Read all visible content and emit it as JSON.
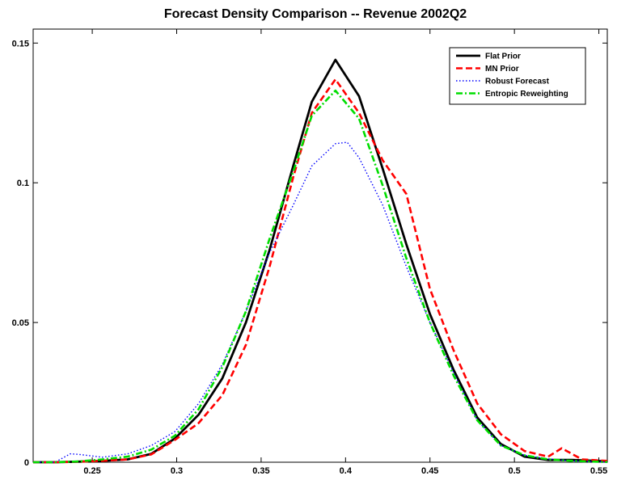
{
  "chart_data": {
    "type": "line",
    "title": "Forecast Density Comparison -- Revenue 2002Q2",
    "xlabel": "",
    "ylabel": "",
    "xlim": [
      0.215,
      0.555
    ],
    "ylim": [
      0,
      0.155
    ],
    "xticks": [
      0.25,
      0.3,
      0.35,
      0.4,
      0.45,
      0.5,
      0.55
    ],
    "xtick_labels": [
      "0.25",
      "0.3",
      "0.35",
      "0.4",
      "0.45",
      "0.5",
      "0.55"
    ],
    "yticks": [
      0,
      0.05,
      0.1,
      0.15
    ],
    "ytick_labels": [
      "0",
      "0.05",
      "0.1",
      "0.15"
    ],
    "grid": false,
    "legend_position": "top-right",
    "series": [
      {
        "name": "Flat Prior",
        "color": "#000000",
        "style": "solid",
        "x": [
          0.215,
          0.228,
          0.242,
          0.256,
          0.271,
          0.285,
          0.299,
          0.313,
          0.327,
          0.341,
          0.355,
          0.369,
          0.38,
          0.394,
          0.408,
          0.422,
          0.436,
          0.45,
          0.464,
          0.478,
          0.492,
          0.506,
          0.52,
          0.534,
          0.548,
          0.555
        ],
        "y": [
          0.0,
          0.0,
          0.0002,
          0.0005,
          0.001,
          0.003,
          0.0085,
          0.017,
          0.03,
          0.05,
          0.076,
          0.106,
          0.129,
          0.144,
          0.131,
          0.105,
          0.078,
          0.053,
          0.033,
          0.016,
          0.0065,
          0.002,
          0.0008,
          0.0008,
          0.0005,
          0.0003
        ]
      },
      {
        "name": "MN Prior",
        "color": "#ff0000",
        "style": "dashed",
        "x": [
          0.215,
          0.228,
          0.242,
          0.256,
          0.271,
          0.285,
          0.299,
          0.313,
          0.327,
          0.341,
          0.355,
          0.369,
          0.38,
          0.394,
          0.408,
          0.422,
          0.436,
          0.45,
          0.464,
          0.478,
          0.492,
          0.506,
          0.52,
          0.528,
          0.54,
          0.555
        ],
        "y": [
          0.0,
          0.0,
          0.0002,
          0.0005,
          0.001,
          0.0028,
          0.008,
          0.014,
          0.024,
          0.042,
          0.07,
          0.102,
          0.125,
          0.137,
          0.125,
          0.108,
          0.096,
          0.062,
          0.04,
          0.021,
          0.01,
          0.004,
          0.002,
          0.005,
          0.001,
          0.0005
        ]
      },
      {
        "name": "Robust Forecast",
        "color": "#0000ff",
        "style": "dotted",
        "x": [
          0.215,
          0.228,
          0.237,
          0.242,
          0.256,
          0.271,
          0.285,
          0.299,
          0.313,
          0.327,
          0.341,
          0.355,
          0.369,
          0.38,
          0.394,
          0.401,
          0.408,
          0.422,
          0.436,
          0.45,
          0.464,
          0.478,
          0.492,
          0.506,
          0.52,
          0.534,
          0.548,
          0.555
        ],
        "y": [
          0.0,
          0.0,
          0.003,
          0.0028,
          0.0018,
          0.003,
          0.006,
          0.011,
          0.021,
          0.035,
          0.054,
          0.075,
          0.092,
          0.106,
          0.114,
          0.1145,
          0.109,
          0.092,
          0.07,
          0.05,
          0.032,
          0.015,
          0.006,
          0.0025,
          0.0012,
          0.0005,
          0.0002,
          0.0001
        ]
      },
      {
        "name": "Entropic Reweighting",
        "color": "#00dd00",
        "style": "dashdot",
        "x": [
          0.215,
          0.228,
          0.242,
          0.256,
          0.271,
          0.285,
          0.299,
          0.313,
          0.327,
          0.341,
          0.355,
          0.369,
          0.38,
          0.394,
          0.408,
          0.422,
          0.436,
          0.45,
          0.464,
          0.478,
          0.492,
          0.506,
          0.52,
          0.534,
          0.548,
          0.555
        ],
        "y": [
          0.0,
          0.0,
          0.0003,
          0.001,
          0.002,
          0.0045,
          0.0095,
          0.019,
          0.034,
          0.054,
          0.08,
          0.104,
          0.124,
          0.133,
          0.123,
          0.099,
          0.073,
          0.05,
          0.031,
          0.015,
          0.006,
          0.0025,
          0.001,
          0.0005,
          0.0002,
          0.0001
        ]
      }
    ]
  }
}
